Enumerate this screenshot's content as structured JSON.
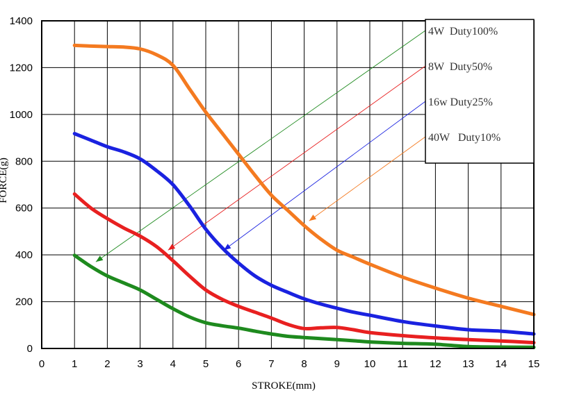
{
  "chart_data": {
    "type": "line",
    "xlabel": "STROKE(mm)",
    "ylabel": "FORCE(g)",
    "xlim": [
      0,
      15
    ],
    "ylim": [
      0,
      1400
    ],
    "xticks": [
      "0",
      "1",
      "2",
      "3",
      "4",
      "5",
      "6",
      "7",
      "8",
      "9",
      "10",
      "11",
      "12",
      "13",
      "14",
      "15"
    ],
    "yticks": [
      "0",
      "200",
      "400",
      "600",
      "800",
      "1000",
      "1200",
      "1400"
    ],
    "grid": true,
    "legend_position": "top-right",
    "series": [
      {
        "name": "4W  Duty100%",
        "color": "#1e8a1e",
        "x": [
          1,
          1.5,
          2,
          2.5,
          3,
          3.5,
          4,
          4.5,
          5,
          5.5,
          6,
          6.5,
          7,
          7.5,
          8,
          8.5,
          9,
          9.5,
          10,
          11,
          12,
          13,
          14,
          15
        ],
        "y": [
          398,
          350,
          310,
          280,
          250,
          210,
          170,
          135,
          110,
          97,
          87,
          74,
          62,
          52,
          47,
          42,
          38,
          33,
          28,
          22,
          18,
          8,
          6,
          5
        ]
      },
      {
        "name": "8W  Duty50%",
        "color": "#e82020",
        "x": [
          1,
          1.5,
          2,
          2.5,
          3,
          3.5,
          4,
          4.5,
          5,
          5.5,
          6,
          6.5,
          7,
          7.5,
          8,
          8.5,
          9,
          9.5,
          10,
          11,
          12,
          13,
          14,
          15
        ],
        "y": [
          660,
          600,
          555,
          515,
          480,
          435,
          375,
          310,
          250,
          210,
          180,
          155,
          130,
          103,
          85,
          88,
          90,
          80,
          68,
          55,
          45,
          38,
          32,
          25
        ]
      },
      {
        "name": "16w Duty25%",
        "color": "#1a22e0",
        "x": [
          1,
          1.5,
          2,
          2.5,
          3,
          3.5,
          4,
          4.5,
          5,
          5.5,
          6,
          6.5,
          7,
          7.5,
          8,
          8.5,
          9,
          9.5,
          10,
          11,
          12,
          13,
          14,
          15
        ],
        "y": [
          918,
          890,
          862,
          840,
          810,
          760,
          700,
          610,
          510,
          430,
          365,
          310,
          270,
          240,
          212,
          190,
          172,
          155,
          142,
          115,
          96,
          80,
          74,
          62
        ]
      },
      {
        "name": "40W   Duty10%",
        "color": "#f47a20",
        "x": [
          1,
          1.5,
          2,
          2.5,
          3,
          3.5,
          4,
          4.5,
          5,
          5.5,
          6,
          6.5,
          7,
          7.5,
          8,
          8.5,
          9,
          9.5,
          10,
          11,
          12,
          13,
          14,
          15
        ],
        "y": [
          1295,
          1292,
          1290,
          1288,
          1280,
          1255,
          1210,
          1110,
          1010,
          920,
          830,
          740,
          655,
          590,
          525,
          468,
          420,
          390,
          360,
          305,
          258,
          215,
          180,
          145
        ]
      }
    ]
  }
}
